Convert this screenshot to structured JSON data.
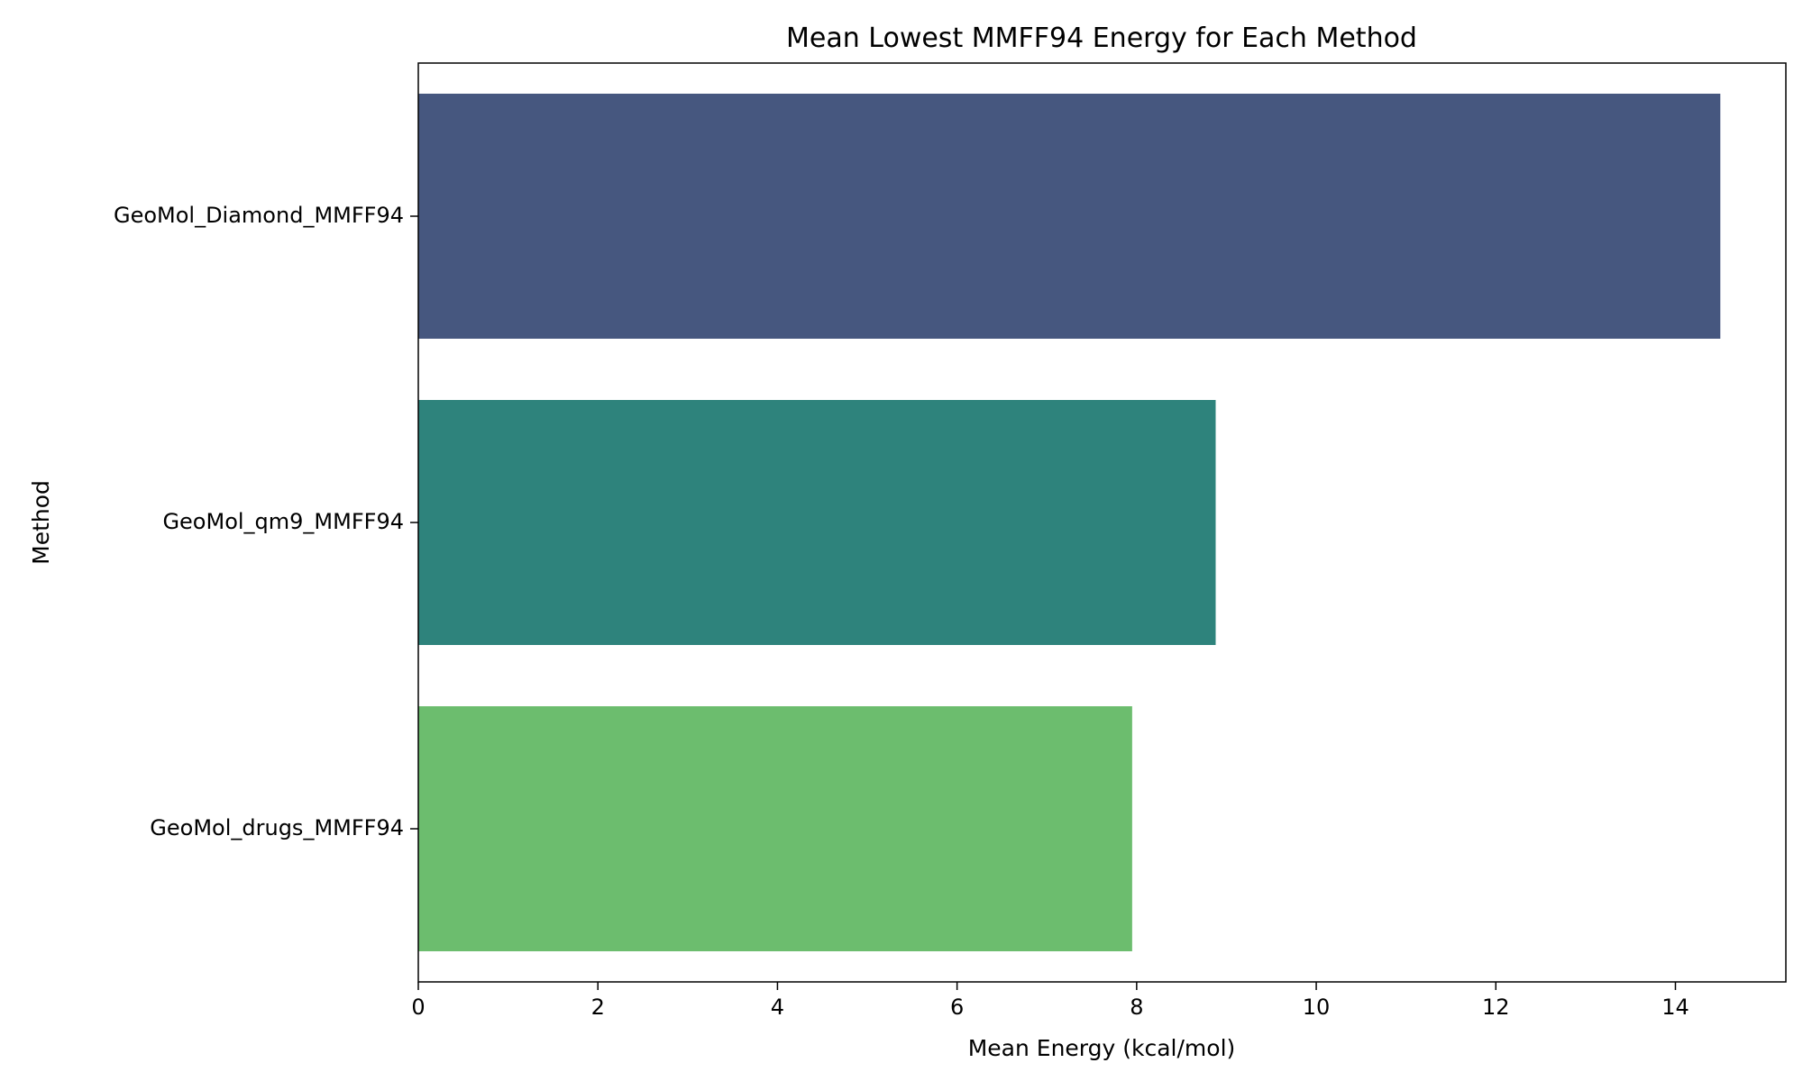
{
  "chart_data": {
    "type": "bar",
    "orientation": "horizontal",
    "title": "Mean Lowest MMFF94 Energy for Each Method",
    "xlabel": "Mean Energy (kcal/mol)",
    "ylabel": "Method",
    "categories": [
      "GeoMol_Diamond_MMFF94",
      "GeoMol_qm9_MMFF94",
      "GeoMol_drugs_MMFF94"
    ],
    "values": [
      14.5,
      8.88,
      7.95
    ],
    "colors": [
      "#46577f",
      "#2e837c",
      "#6cbd6e"
    ],
    "xlim": [
      0,
      15.23
    ],
    "xticks": [
      0,
      2,
      4,
      6,
      8,
      10,
      12,
      14
    ],
    "grid": false,
    "legend": "none"
  }
}
